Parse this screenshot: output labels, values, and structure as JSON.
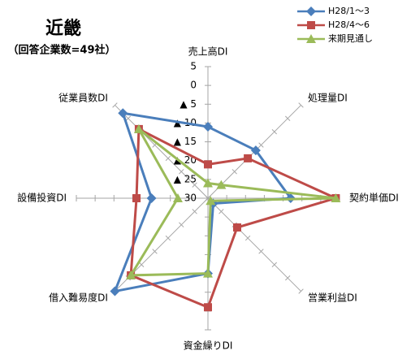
{
  "chart_data": {
    "type": "radar",
    "title": "近畿",
    "subtitle": "（回答企業数=49社）",
    "categories": [
      "売上高DI",
      "処理量DI",
      "契約単価DI",
      "営業利益DI",
      "資金繰りDI",
      "借入難易度DI",
      "設備投資DI",
      "従業員数DI"
    ],
    "ylim": [
      -30,
      5
    ],
    "yticks": [
      {
        "value": -30,
        "label": "▲ 30"
      },
      {
        "value": -25,
        "label": "▲ 25"
      },
      {
        "value": -20,
        "label": "▲ 20"
      },
      {
        "value": -15,
        "label": "▲ 15"
      },
      {
        "value": -10,
        "label": "▲ 10"
      },
      {
        "value": -5,
        "label": "▲ 5"
      },
      0,
      5
    ],
    "series": [
      {
        "name": "H28/1～3",
        "color": "#4a7ebb",
        "marker": "diamond",
        "values": [
          -11,
          -12,
          -8,
          -28,
          -10,
          5,
          -15,
          2
        ]
      },
      {
        "name": "H28/4～6",
        "color": "#be4b48",
        "marker": "square",
        "values": [
          -21,
          -15,
          4,
          -19,
          -1,
          -1,
          -11,
          -4
        ]
      },
      {
        "name": "来期見通し",
        "color": "#9bbb59",
        "marker": "triangle",
        "values": [
          -26,
          -25,
          4,
          -29,
          -10,
          -1,
          -22,
          -4
        ]
      }
    ]
  }
}
